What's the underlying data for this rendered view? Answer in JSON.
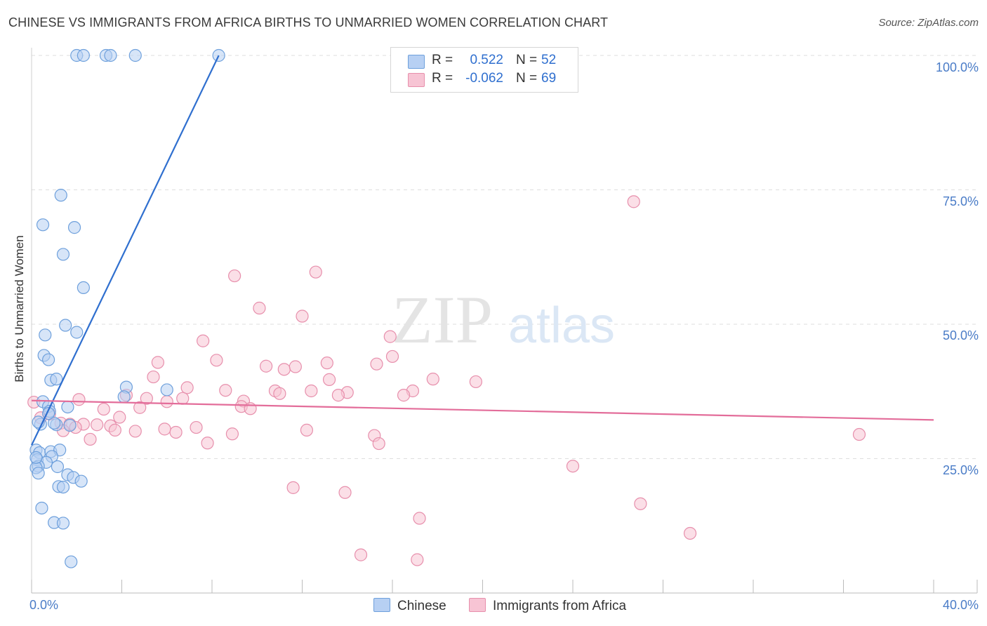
{
  "title": "CHINESE VS IMMIGRANTS FROM AFRICA BIRTHS TO UNMARRIED WOMEN CORRELATION CHART",
  "source": "Source: ZipAtlas.com",
  "watermark": {
    "zip": "ZIP",
    "atlas": "atlas"
  },
  "stats": [
    {
      "r_label": "R =",
      "r_value": "0.522",
      "n_label": "N =",
      "n_value": "52"
    },
    {
      "r_label": "R =",
      "r_value": "-0.062",
      "n_label": "N =",
      "n_value": "69"
    }
  ],
  "colors": {
    "blue_fill": "#b7d0f3",
    "blue_stroke": "#6ea0dc",
    "blue_line": "#2f6fcf",
    "pink_fill": "#f7c4d4",
    "pink_stroke": "#e78fac",
    "pink_line": "#e36d9a",
    "tick_text": "#4a7cc7"
  },
  "chart_data": {
    "type": "scatter",
    "title": "CHINESE VS IMMIGRANTS FROM AFRICA BIRTHS TO UNMARRIED WOMEN CORRELATION CHART",
    "xlabel": "",
    "ylabel": "Births to Unmarried Women",
    "xlim": [
      0,
      40
    ],
    "ylim": [
      0,
      100
    ],
    "x_tick_labels": [
      "0.0%",
      "40.0%"
    ],
    "y_tick_labels": [
      "100.0%",
      "75.0%",
      "50.0%",
      "25.0%"
    ],
    "y_ticks": [
      100,
      75,
      50,
      25
    ],
    "grid": true,
    "legend": [
      "Chinese",
      "Immigrants from Africa"
    ],
    "series": [
      {
        "name": "Chinese",
        "color": "#6ea0dc",
        "r": 0.522,
        "n": 52,
        "trend": {
          "x": [
            0,
            8.3
          ],
          "y": [
            27.5,
            100
          ]
        },
        "points": [
          [
            2.0,
            100
          ],
          [
            2.3,
            100
          ],
          [
            3.3,
            100
          ],
          [
            3.5,
            100
          ],
          [
            4.6,
            100
          ],
          [
            8.3,
            100
          ],
          [
            1.3,
            74
          ],
          [
            0.5,
            68.5
          ],
          [
            1.9,
            68
          ],
          [
            1.4,
            63
          ],
          [
            2.3,
            56.8
          ],
          [
            1.5,
            49.8
          ],
          [
            2.0,
            48.5
          ],
          [
            0.6,
            48
          ],
          [
            0.55,
            44.2
          ],
          [
            0.75,
            43.4
          ],
          [
            0.85,
            39.6
          ],
          [
            1.1,
            39.8
          ],
          [
            4.2,
            38.3
          ],
          [
            6.0,
            37.8
          ],
          [
            4.1,
            36.5
          ],
          [
            0.5,
            35.6
          ],
          [
            0.75,
            34.7
          ],
          [
            1.6,
            34.6
          ],
          [
            0.8,
            33.8
          ],
          [
            1.7,
            31.2
          ],
          [
            1.1,
            31.3
          ],
          [
            0.4,
            31.4
          ],
          [
            1.0,
            31.6
          ],
          [
            0.3,
            31.8
          ],
          [
            0.2,
            26.6
          ],
          [
            0.35,
            26.1
          ],
          [
            0.85,
            26.3
          ],
          [
            1.25,
            26.6
          ],
          [
            0.9,
            25.4
          ],
          [
            0.25,
            24.8
          ],
          [
            0.65,
            24.3
          ],
          [
            0.3,
            23.6
          ],
          [
            0.2,
            23.3
          ],
          [
            1.15,
            23.5
          ],
          [
            0.3,
            22.3
          ],
          [
            1.6,
            22
          ],
          [
            1.85,
            21.5
          ],
          [
            2.2,
            20.8
          ],
          [
            1.2,
            19.8
          ],
          [
            1.4,
            19.7
          ],
          [
            0.45,
            15.8
          ],
          [
            1.0,
            13.1
          ],
          [
            1.4,
            13
          ],
          [
            1.75,
            5.8
          ],
          [
            0.75,
            33.4
          ],
          [
            0.2,
            25.2
          ]
        ]
      },
      {
        "name": "Immigrants from Africa",
        "color": "#e78fac",
        "r": -0.062,
        "n": 69,
        "trend": {
          "x": [
            0,
            40
          ],
          "y": [
            35.8,
            32.2
          ]
        },
        "points": [
          [
            26.7,
            72.8
          ],
          [
            9.0,
            59
          ],
          [
            12.6,
            59.7
          ],
          [
            10.1,
            53
          ],
          [
            12.0,
            51.5
          ],
          [
            15.9,
            47.7
          ],
          [
            7.6,
            46.9
          ],
          [
            8.2,
            43.3
          ],
          [
            5.6,
            42.9
          ],
          [
            10.4,
            42.2
          ],
          [
            11.2,
            41.6
          ],
          [
            11.7,
            42.1
          ],
          [
            13.1,
            42.8
          ],
          [
            15.3,
            42.6
          ],
          [
            16.0,
            44.0
          ],
          [
            5.4,
            40.2
          ],
          [
            13.2,
            39.7
          ],
          [
            17.8,
            39.8
          ],
          [
            19.7,
            39.3
          ],
          [
            6.9,
            38.2
          ],
          [
            8.6,
            37.7
          ],
          [
            10.8,
            37.6
          ],
          [
            12.4,
            37.6
          ],
          [
            14.0,
            37.3
          ],
          [
            16.9,
            37.6
          ],
          [
            4.2,
            36.8
          ],
          [
            2.1,
            36.0
          ],
          [
            5.1,
            36.2
          ],
          [
            6.0,
            35.6
          ],
          [
            6.7,
            36.2
          ],
          [
            9.4,
            35.7
          ],
          [
            11.0,
            37.1
          ],
          [
            13.6,
            36.8
          ],
          [
            16.5,
            36.8
          ],
          [
            3.2,
            34.2
          ],
          [
            4.8,
            34.5
          ],
          [
            9.3,
            34.7
          ],
          [
            9.7,
            34.3
          ],
          [
            0.1,
            35.5
          ],
          [
            0.8,
            33.3
          ],
          [
            0.4,
            32.6
          ],
          [
            1.3,
            31.6
          ],
          [
            1.7,
            31.4
          ],
          [
            2.3,
            31.4
          ],
          [
            2.9,
            31.3
          ],
          [
            3.5,
            31.1
          ],
          [
            3.9,
            32.7
          ],
          [
            1.95,
            30.8
          ],
          [
            1.4,
            30.2
          ],
          [
            3.7,
            30.3
          ],
          [
            4.6,
            30.1
          ],
          [
            5.9,
            30.5
          ],
          [
            6.4,
            29.9
          ],
          [
            7.3,
            30.8
          ],
          [
            8.9,
            29.6
          ],
          [
            12.2,
            30.3
          ],
          [
            2.6,
            28.6
          ],
          [
            7.8,
            27.9
          ],
          [
            15.2,
            29.3
          ],
          [
            15.4,
            27.8
          ],
          [
            24.0,
            23.6
          ],
          [
            36.7,
            29.5
          ],
          [
            11.6,
            19.6
          ],
          [
            13.9,
            18.7
          ],
          [
            27.0,
            16.6
          ],
          [
            17.2,
            13.9
          ],
          [
            29.2,
            11.1
          ],
          [
            14.6,
            7.1
          ],
          [
            17.1,
            6.2
          ]
        ]
      }
    ]
  }
}
